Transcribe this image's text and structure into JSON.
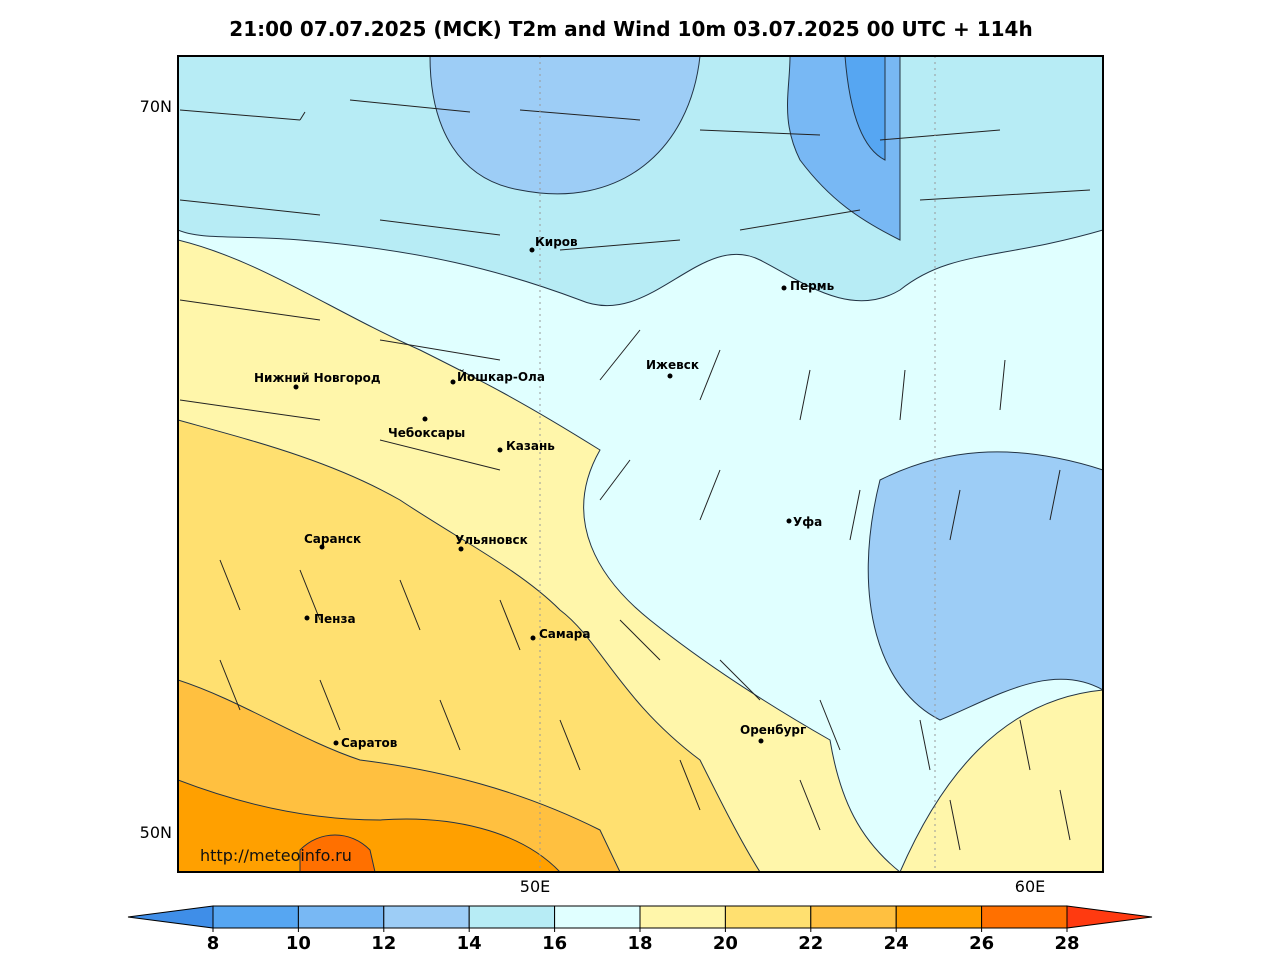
{
  "header": {
    "title": "21:00 07.07.2025 (MCK) T2m and Wind 10m 03.07.2025 00 UTC + 114h"
  },
  "map": {
    "lat_labels": [
      "70N",
      "50N"
    ],
    "lon_labels": [
      "50E",
      "60E"
    ],
    "cities": [
      "Киров",
      "Пермь",
      "Нижний Новгород",
      "Йошкар-Ола",
      "Ижевск",
      "Чебоксары",
      "Казань",
      "Уфа",
      "Саранск",
      "Ульяновск",
      "Пенза",
      "Самара",
      "Оренбург",
      "Саратов"
    ],
    "watermark": "http://meteoinfo.ru"
  },
  "colorbar": {
    "ticks": [
      8,
      10,
      12,
      14,
      16,
      18,
      20,
      22,
      24,
      26,
      28
    ],
    "colors": [
      "#3f8ee8",
      "#56a6f2",
      "#78b8f4",
      "#9dcdf6",
      "#b7ecf5",
      "#e0ffff",
      "#fff6aa",
      "#ffe070",
      "#ffc040",
      "#ffa000",
      "#ff7000",
      "#ff3a10"
    ]
  }
}
